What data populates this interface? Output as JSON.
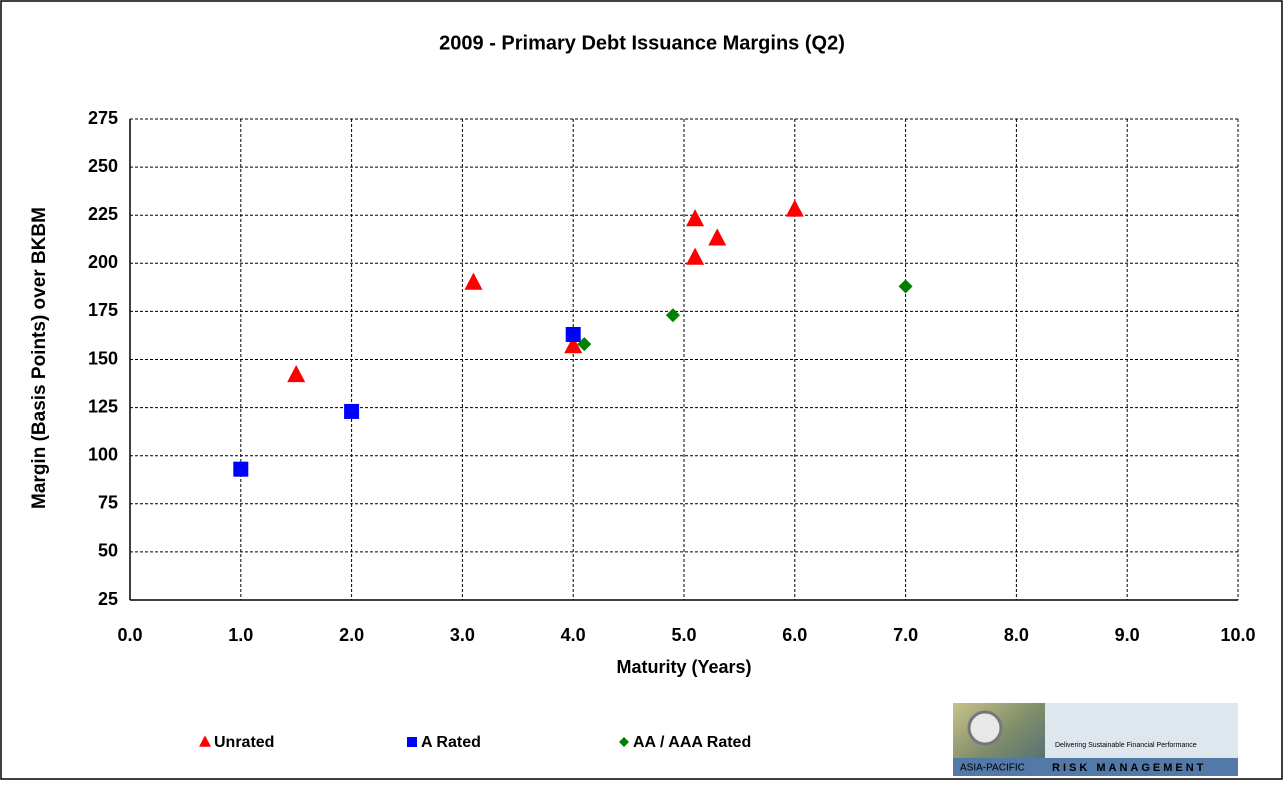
{
  "chart_data": {
    "type": "scatter",
    "title": "2009 - Primary Debt Issuance Margins (Q2)",
    "x_label": "Maturity (Years)",
    "y_label": "Margin (Basis Points) over BKBM",
    "xlim": [
      0,
      10
    ],
    "ylim": [
      25,
      275
    ],
    "xticks": [
      {
        "value": 0,
        "label": "0.0"
      },
      {
        "value": 1,
        "label": "1.0"
      },
      {
        "value": 2,
        "label": "2.0"
      },
      {
        "value": 3,
        "label": "3.0"
      },
      {
        "value": 4,
        "label": "4.0"
      },
      {
        "value": 5,
        "label": "5.0"
      },
      {
        "value": 6,
        "label": "6.0"
      },
      {
        "value": 7,
        "label": "7.0"
      },
      {
        "value": 8,
        "label": "8.0"
      },
      {
        "value": 9,
        "label": "9.0"
      },
      {
        "value": 10,
        "label": "10.0"
      }
    ],
    "yticks": [
      25,
      50,
      75,
      100,
      125,
      150,
      175,
      200,
      225,
      250,
      275
    ],
    "grid": true,
    "legend": "bottom",
    "series": [
      {
        "name": "Unrated",
        "color": "#ff0000",
        "marker": "triangle",
        "x": [
          1.5,
          3.1,
          4.0,
          5.1,
          5.1,
          5.3,
          6.0
        ],
        "values": [
          142,
          190,
          157,
          223,
          203,
          213,
          228
        ]
      },
      {
        "name": "A Rated",
        "color": "#0000ff",
        "marker": "square",
        "x": [
          1.0,
          2.0,
          4.0
        ],
        "values": [
          93,
          123,
          163
        ]
      },
      {
        "name": "AA / AAA  Rated",
        "color": "#008000",
        "marker": "diamond",
        "x": [
          4.1,
          4.9,
          7.0
        ],
        "values": [
          158,
          173,
          188
        ]
      }
    ]
  },
  "logo": {
    "tagline": "Delivering Sustainable Financial Performance",
    "region": "ASIA-PACIFIC",
    "name": "RISK MANAGEMENT"
  }
}
